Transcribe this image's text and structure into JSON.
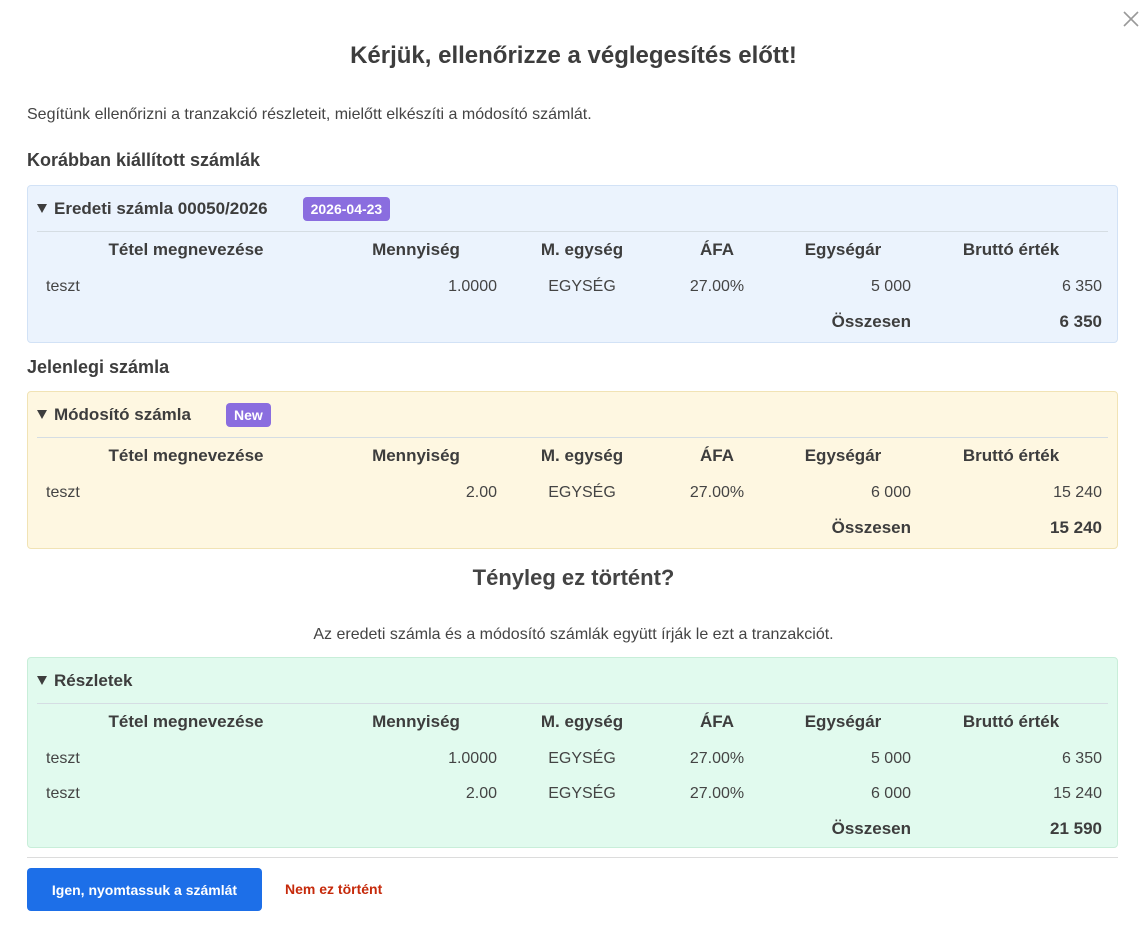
{
  "dialog": {
    "title": "Kérjük, ellenőrizze a véglegesítés előtt!",
    "intro": "Segítünk ellenőrizni a tranzakció részleteit, mielőtt elkészíti a módosító számlát.",
    "previous_heading": "Korábban kiállított számlák",
    "current_heading": "Jelenlegi számla",
    "question": "Tényleg ez történt?",
    "question_note": "Az eredeti számla és a módosító számlák együtt írják le ezt a tranzakciót.",
    "columns": [
      "Tétel megnevezése",
      "Mennyiség",
      "M. egység",
      "ÁFA",
      "Egységár",
      "Bruttó érték"
    ],
    "panels": [
      {
        "title": "Eredeti számla 00050/2026",
        "badge": "2026-04-23",
        "rows": [
          [
            "teszt",
            "1.0000",
            "EGYSÉG",
            "27.00%",
            "5 000",
            "6 350"
          ]
        ],
        "total_label": "Összesen",
        "total": "6 350"
      },
      {
        "title": "Módosító számla",
        "badge": "New",
        "rows": [
          [
            "teszt",
            "2.00",
            "EGYSÉG",
            "27.00%",
            "6 000",
            "15 240"
          ]
        ],
        "total_label": "Összesen",
        "total": "15 240"
      },
      {
        "title": "Részletek",
        "rows": [
          [
            "teszt",
            "1.0000",
            "EGYSÉG",
            "27.00%",
            "5 000",
            "6 350"
          ],
          [
            "teszt",
            "2.00",
            "EGYSÉG",
            "27.00%",
            "6 000",
            "15 240"
          ]
        ],
        "total_label": "Összesen",
        "total": "21 590"
      }
    ],
    "buttons": {
      "confirm": "Igen, nyomtassuk a számlát",
      "cancel": "Nem ez történt"
    }
  }
}
